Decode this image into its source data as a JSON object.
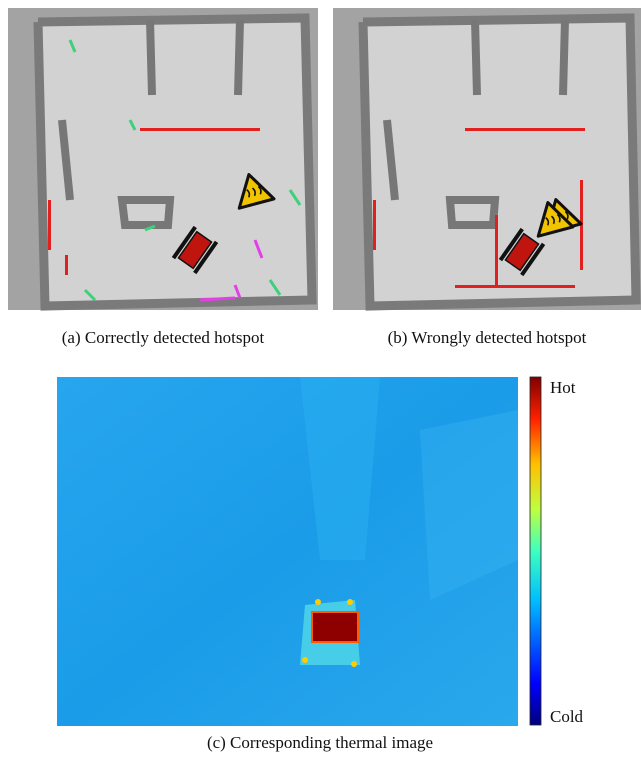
{
  "subfigures": [
    {
      "caption": "(a) Correctly detected hotspot"
    },
    {
      "caption": "(b) Wrongly detected hotspot"
    },
    {
      "caption": "(c) Corresponding thermal image"
    }
  ],
  "colorbar": {
    "max_label": "Hot",
    "min_label": "Cold"
  }
}
